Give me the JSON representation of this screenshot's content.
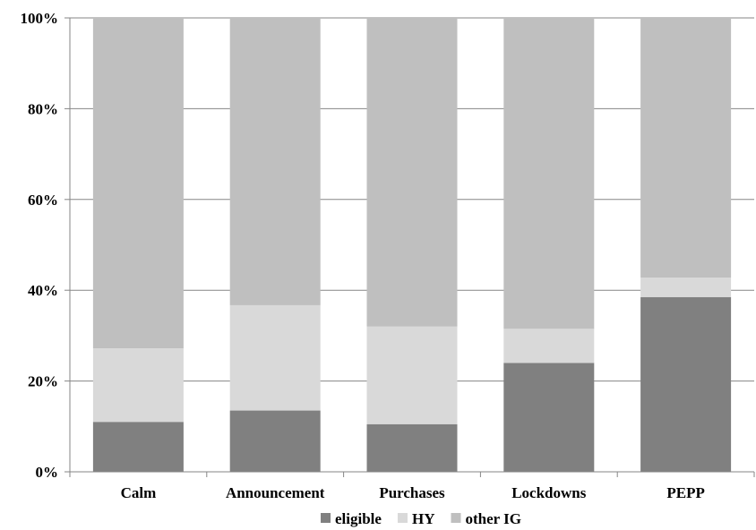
{
  "chart_data": {
    "type": "bar",
    "stacked": true,
    "percent_stacked": true,
    "categories": [
      "Calm",
      "Announcement",
      "Purchases",
      "Lockdowns",
      "PEPP"
    ],
    "series": [
      {
        "name": "eligible",
        "color": "#808080",
        "values": [
          11,
          13.5,
          10.5,
          24,
          38.5
        ]
      },
      {
        "name": "HY",
        "color": "#d9d9d9",
        "values": [
          16.2,
          23.2,
          21.5,
          7.5,
          4.3
        ]
      },
      {
        "name": "other IG",
        "color": "#bfbfbf",
        "values": [
          72.8,
          63.3,
          68,
          68.5,
          57.2
        ]
      }
    ],
    "ylim": [
      0,
      100
    ],
    "yticks": [
      "0%",
      "20%",
      "40%",
      "60%",
      "80%",
      "100%"
    ],
    "ytick_values": [
      0,
      20,
      40,
      60,
      80,
      100
    ],
    "title": "",
    "xlabel": "",
    "ylabel": "",
    "grid": true,
    "legend": "bottom"
  }
}
